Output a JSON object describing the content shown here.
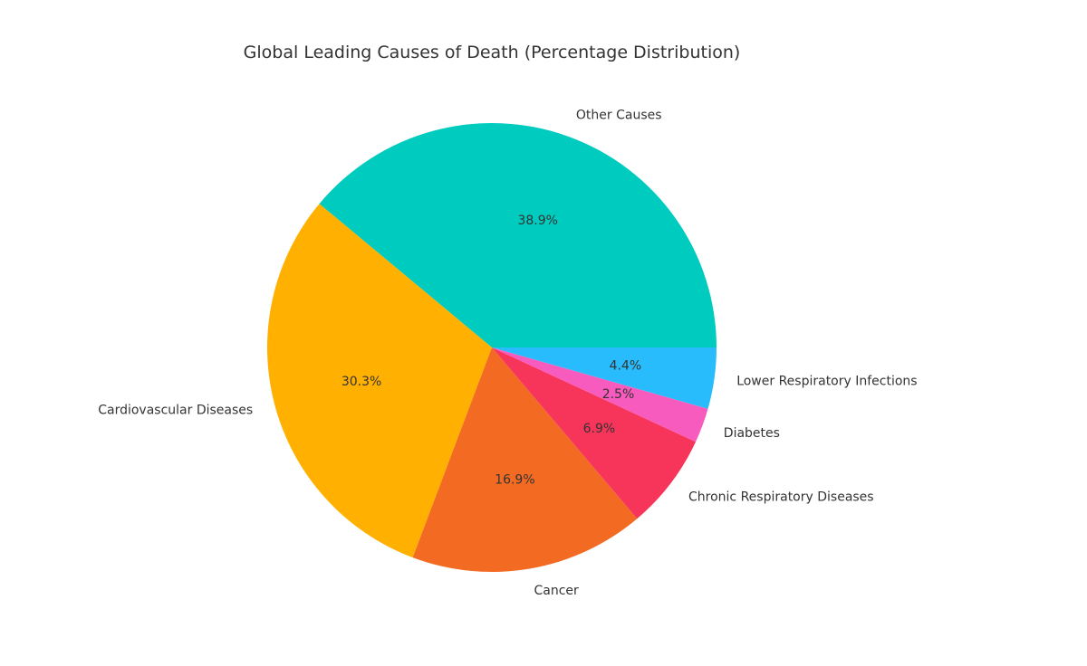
{
  "chart_data": {
    "type": "pie",
    "title": "Global Leading Causes of Death (Percentage Distribution)",
    "start_angle_deg": 0,
    "direction": "counterclockwise",
    "slices": [
      {
        "label": "Other Causes",
        "value": 38.9,
        "pct_label": "38.9%",
        "color": "#00CBBF"
      },
      {
        "label": "Cardiovascular Diseases",
        "value": 30.3,
        "pct_label": "30.3%",
        "color": "#FFB000"
      },
      {
        "label": "Cancer",
        "value": 16.9,
        "pct_label": "16.9%",
        "color": "#F36B22"
      },
      {
        "label": "Chronic Respiratory Diseases",
        "value": 6.9,
        "pct_label": "6.9%",
        "color": "#F7355A"
      },
      {
        "label": "Diabetes",
        "value": 2.5,
        "pct_label": "2.5%",
        "color": "#F75BBE"
      },
      {
        "label": "Lower Respiratory Infections",
        "value": 4.4,
        "pct_label": "4.4%",
        "color": "#29BCFD"
      }
    ]
  }
}
